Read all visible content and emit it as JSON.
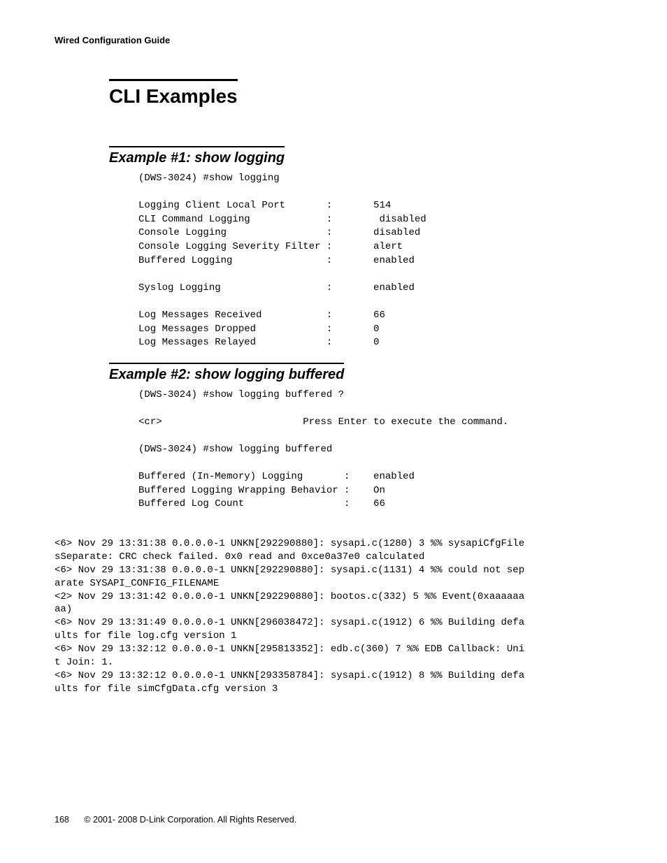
{
  "header": {
    "running_title": "Wired Configuration Guide"
  },
  "section": {
    "title": "CLI Examples"
  },
  "example1": {
    "title": "Example #1: show logging",
    "cmd_line": "(DWS-3024) #show logging",
    "rows": [
      {
        "label": "Logging Client Local Port",
        "sep": ":",
        "value": "514"
      },
      {
        "label": "CLI Command Logging",
        "sep": ":",
        "value": " disabled"
      },
      {
        "label": "Console Logging",
        "sep": ":",
        "value": "disabled"
      },
      {
        "label": "Console Logging Severity Filter",
        "sep": ":",
        "value": "alert"
      },
      {
        "label": "Buffered Logging",
        "sep": ":",
        "value": "enabled"
      },
      {
        "label": "",
        "sep": "",
        "value": ""
      },
      {
        "label": "Syslog Logging",
        "sep": ":",
        "value": "enabled"
      },
      {
        "label": "",
        "sep": "",
        "value": ""
      },
      {
        "label": "Log Messages Received",
        "sep": ":",
        "value": "66"
      },
      {
        "label": "Log Messages Dropped",
        "sep": ":",
        "value": "0"
      },
      {
        "label": "Log Messages Relayed",
        "sep": ":",
        "value": "0"
      }
    ]
  },
  "example2": {
    "title": "Example #2: show logging buffered",
    "cmd_line1": "(DWS-3024) #show logging buffered ?",
    "help_line_key": "<cr>",
    "help_line_desc": "Press Enter to execute the command.",
    "cmd_line2": "(DWS-3024) #show logging buffered",
    "rows": [
      {
        "label": "Buffered (In-Memory) Logging",
        "sep": ":",
        "value": "enabled"
      },
      {
        "label": "Buffered Logging Wrapping Behavior",
        "sep": ":",
        "value": "On"
      },
      {
        "label": "Buffered Log Count",
        "sep": ":",
        "value": "66"
      }
    ],
    "log_lines": [
      "<6> Nov 29 13:31:38 0.0.0.0-1 UNKN[292290880]: sysapi.c(1280) 3 %% sysapiCfgFile",
      "sSeparate: CRC check failed. 0x0 read and 0xce0a37e0 calculated",
      "<6> Nov 29 13:31:38 0.0.0.0-1 UNKN[292290880]: sysapi.c(1131) 4 %% could not sep",
      "arate SYSAPI_CONFIG_FILENAME",
      "<2> Nov 29 13:31:42 0.0.0.0-1 UNKN[292290880]: bootos.c(332) 5 %% Event(0xaaaaaa",
      "aa)",
      "<6> Nov 29 13:31:49 0.0.0.0-1 UNKN[296038472]: sysapi.c(1912) 6 %% Building defa",
      "ults for file log.cfg version 1",
      "<6> Nov 29 13:32:12 0.0.0.0-1 UNKN[295813352]: edb.c(360) 7 %% EDB Callback: Uni",
      "t Join: 1.",
      "<6> Nov 29 13:32:12 0.0.0.0-1 UNKN[293358784]: sysapi.c(1912) 8 %% Building defa",
      "ults for file simCfgData.cfg version 3"
    ]
  },
  "footer": {
    "page_number": "168",
    "copyright": "© 2001- 2008 D-Link Corporation. All Rights Reserved."
  },
  "style": {
    "mono_label_width": 32,
    "mono_sep_width": 8,
    "mono_label_width_ex2": 35,
    "mono_sep_width_ex2": 5,
    "help_key_width": 28
  }
}
